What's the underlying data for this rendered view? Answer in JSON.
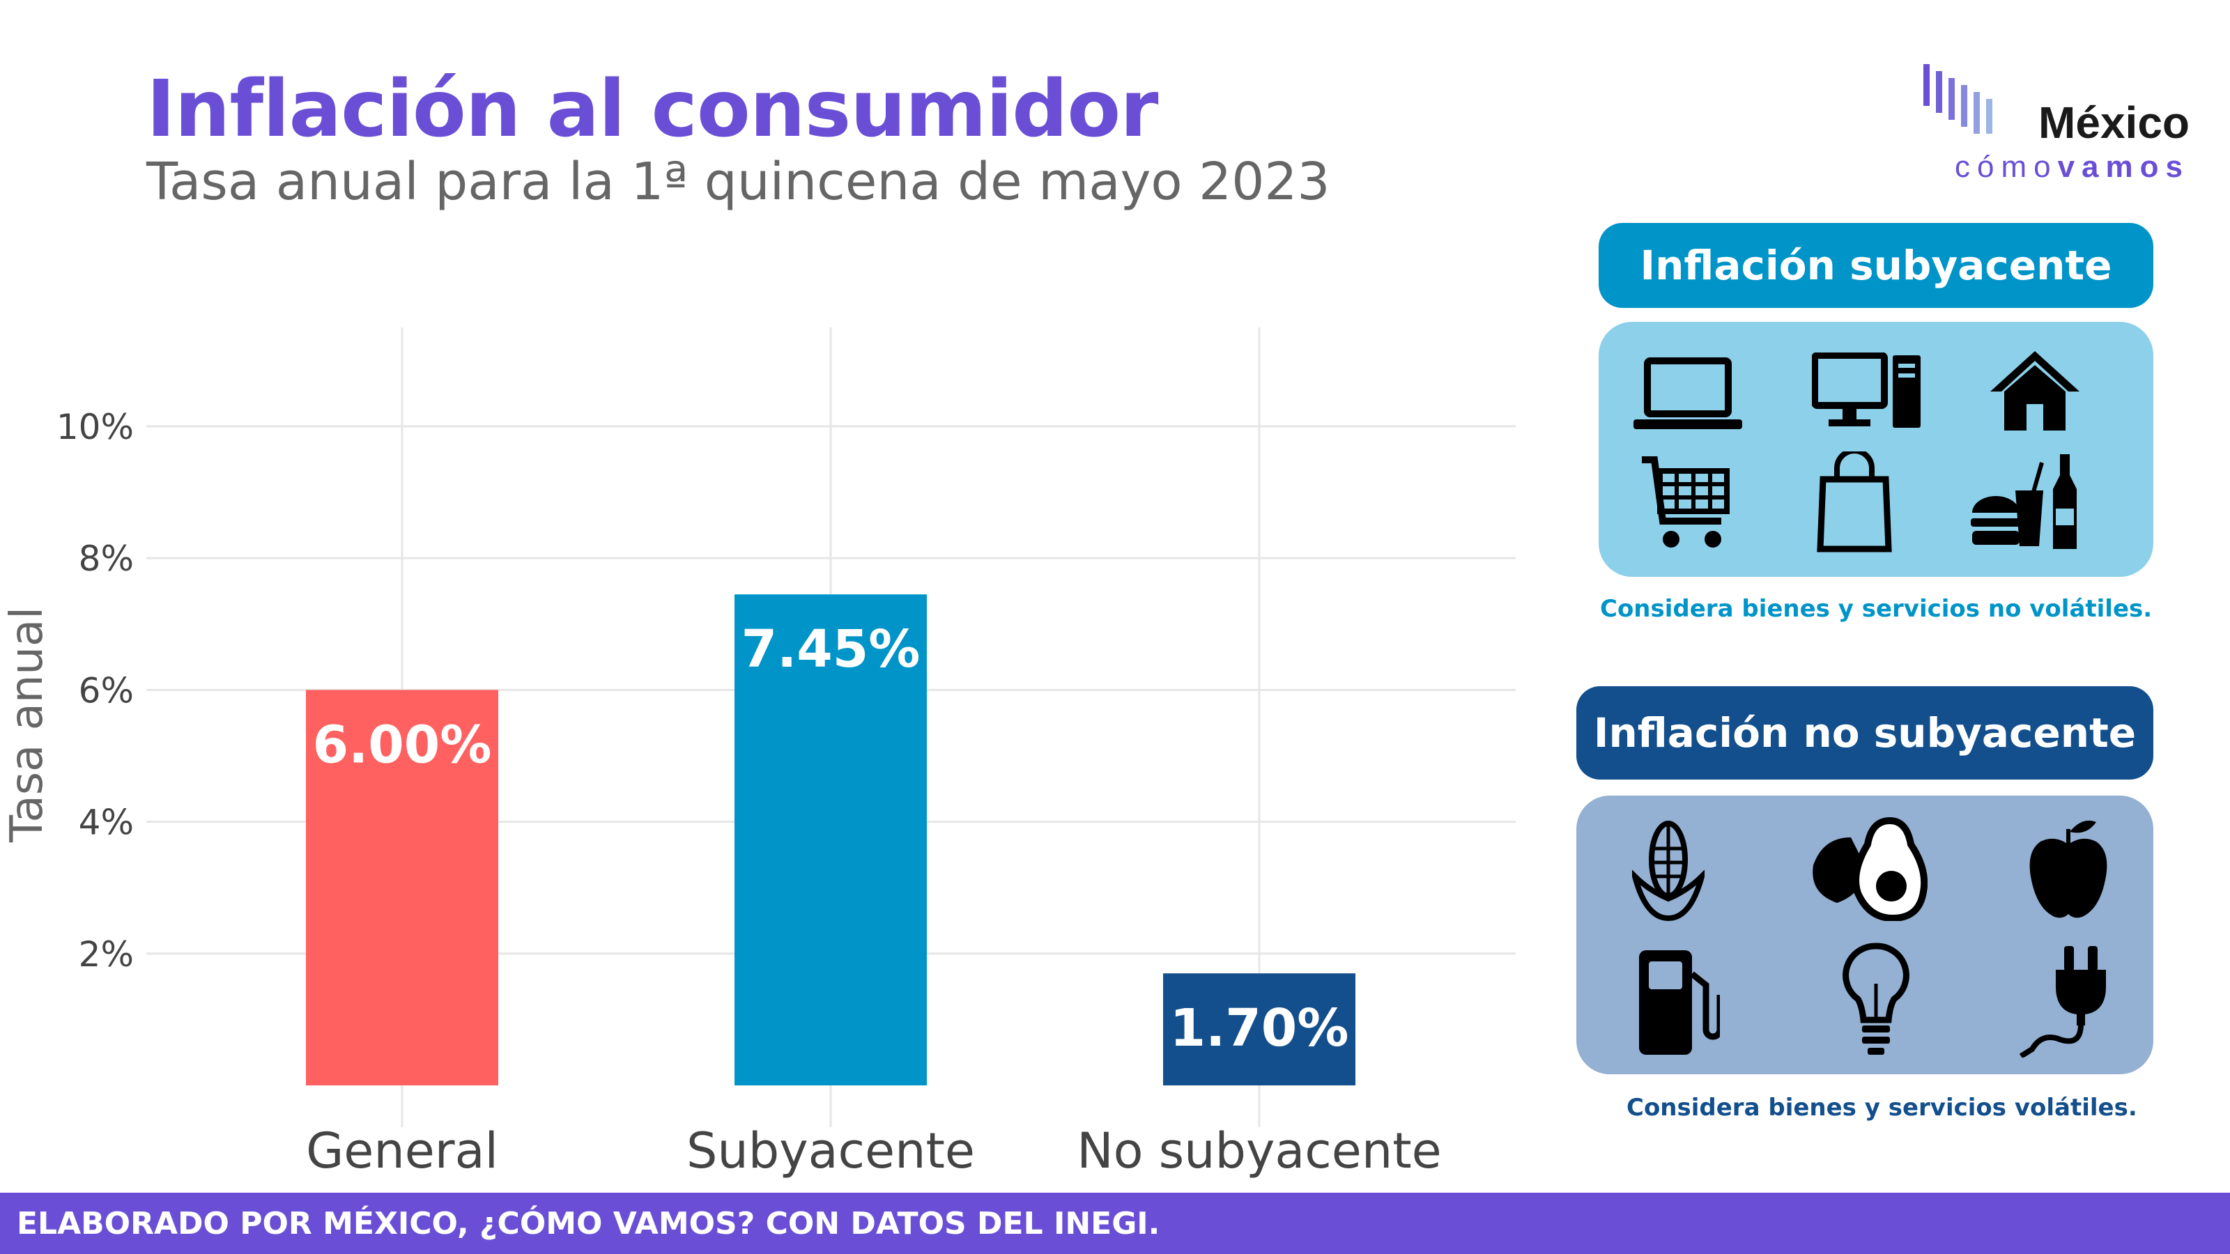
{
  "header": {
    "title": "Inflación al consumidor",
    "subtitle": "Tasa anual para la 1ª quincena de mayo 2023"
  },
  "logo": {
    "line1": "México",
    "line2a": "cómo",
    "line2b": "vamos"
  },
  "chart_data": {
    "type": "bar",
    "title": "",
    "ylabel": "Tasa anual",
    "xlabel": "",
    "categories": [
      "General",
      "Subyacente",
      "No subyacente"
    ],
    "values": [
      6.0,
      7.45,
      1.7
    ],
    "data_labels": [
      "6.00%",
      "7.45%",
      "1.70%"
    ],
    "colors": [
      "#ff6060",
      "#0094c8",
      "#134f8c"
    ],
    "ylim": [
      0,
      11.5
    ],
    "yticks": [
      2,
      4,
      6,
      8,
      10
    ],
    "ytick_labels": [
      "2%",
      "4%",
      "6%",
      "8%",
      "10%"
    ],
    "grid": true
  },
  "panels": {
    "subyacente": {
      "title": "Inflación subyacente",
      "note": "Considera bienes y servicios no volátiles.",
      "head_color": "#0094c8",
      "box_color": "#8dd0ea",
      "icons": [
        "laptop-icon",
        "desktop-computer-icon",
        "house-icon",
        "shopping-cart-icon",
        "shopping-bag-icon",
        "fast-food-icon"
      ]
    },
    "no_subyacente": {
      "title": "Inflación no subyacente",
      "note": "Considera bienes y servicios volátiles.",
      "head_color": "#134f8c",
      "box_color": "#94b0d2",
      "icons": [
        "corn-icon",
        "avocado-icon",
        "apple-icon",
        "gas-pump-icon",
        "light-bulb-icon",
        "electric-plug-icon"
      ]
    }
  },
  "footer": {
    "text": "ELABORADO POR MÉXICO, ¿CÓMO VAMOS? CON DATOS DEL INEGI."
  }
}
